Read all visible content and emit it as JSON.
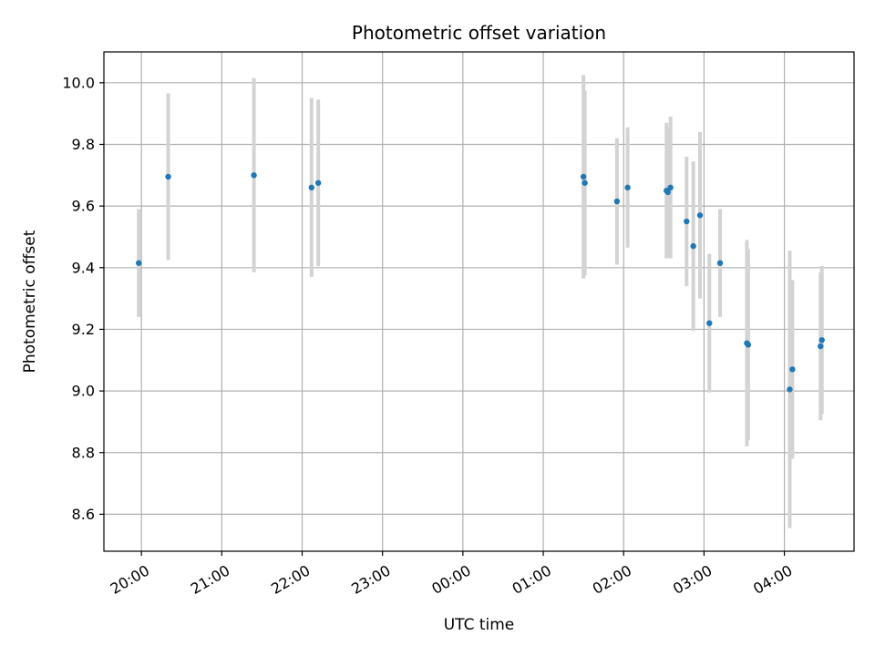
{
  "chart_data": {
    "type": "scatter",
    "title": "Photometric offset variation",
    "xlabel": "UTC time",
    "ylabel": "Photometric offset",
    "grid": true,
    "x_axis": {
      "kind": "time",
      "range": [
        "19:32",
        "04:52"
      ],
      "ticks": [
        "20:00",
        "21:00",
        "22:00",
        "23:00",
        "00:00",
        "01:00",
        "02:00",
        "03:00",
        "04:00"
      ]
    },
    "y_axis": {
      "range": [
        8.48,
        10.1
      ],
      "ticks": [
        "8.6",
        "8.8",
        "9.0",
        "9.2",
        "9.4",
        "9.6",
        "9.8",
        "10.0"
      ]
    },
    "colors": {
      "point": "#1f77b4",
      "errorbar": "#d3d3d3",
      "grid": "#b0b0b0"
    },
    "points": [
      {
        "time": "19:58",
        "y": 9.415,
        "err": 0.175
      },
      {
        "time": "20:20",
        "y": 9.695,
        "err": 0.27
      },
      {
        "time": "21:24",
        "y": 9.7,
        "err": 0.315
      },
      {
        "time": "22:07",
        "y": 9.66,
        "err": 0.29
      },
      {
        "time": "22:12",
        "y": 9.675,
        "err": 0.27
      },
      {
        "time": "01:30",
        "y": 9.695,
        "err": 0.33
      },
      {
        "time": "01:31",
        "y": 9.675,
        "err": 0.3
      },
      {
        "time": "01:55",
        "y": 9.615,
        "err": 0.205
      },
      {
        "time": "02:03",
        "y": 9.66,
        "err": 0.195
      },
      {
        "time": "02:32",
        "y": 9.65,
        "err": 0.22
      },
      {
        "time": "02:33",
        "y": 9.645,
        "err": 0.21
      },
      {
        "time": "02:35",
        "y": 9.66,
        "err": 0.23
      },
      {
        "time": "02:47",
        "y": 9.55,
        "err": 0.21
      },
      {
        "time": "02:52",
        "y": 9.47,
        "err": 0.275
      },
      {
        "time": "02:57",
        "y": 9.57,
        "err": 0.27
      },
      {
        "time": "03:04",
        "y": 9.22,
        "err": 0.225
      },
      {
        "time": "03:12",
        "y": 9.415,
        "err": 0.175
      },
      {
        "time": "03:32",
        "y": 9.155,
        "err": 0.335
      },
      {
        "time": "03:33",
        "y": 9.15,
        "err": 0.31
      },
      {
        "time": "04:04",
        "y": 9.005,
        "err": 0.45
      },
      {
        "time": "04:06",
        "y": 9.07,
        "err": 0.29
      },
      {
        "time": "04:27",
        "y": 9.145,
        "err": 0.24
      },
      {
        "time": "04:28",
        "y": 9.165,
        "err": 0.24
      }
    ]
  }
}
